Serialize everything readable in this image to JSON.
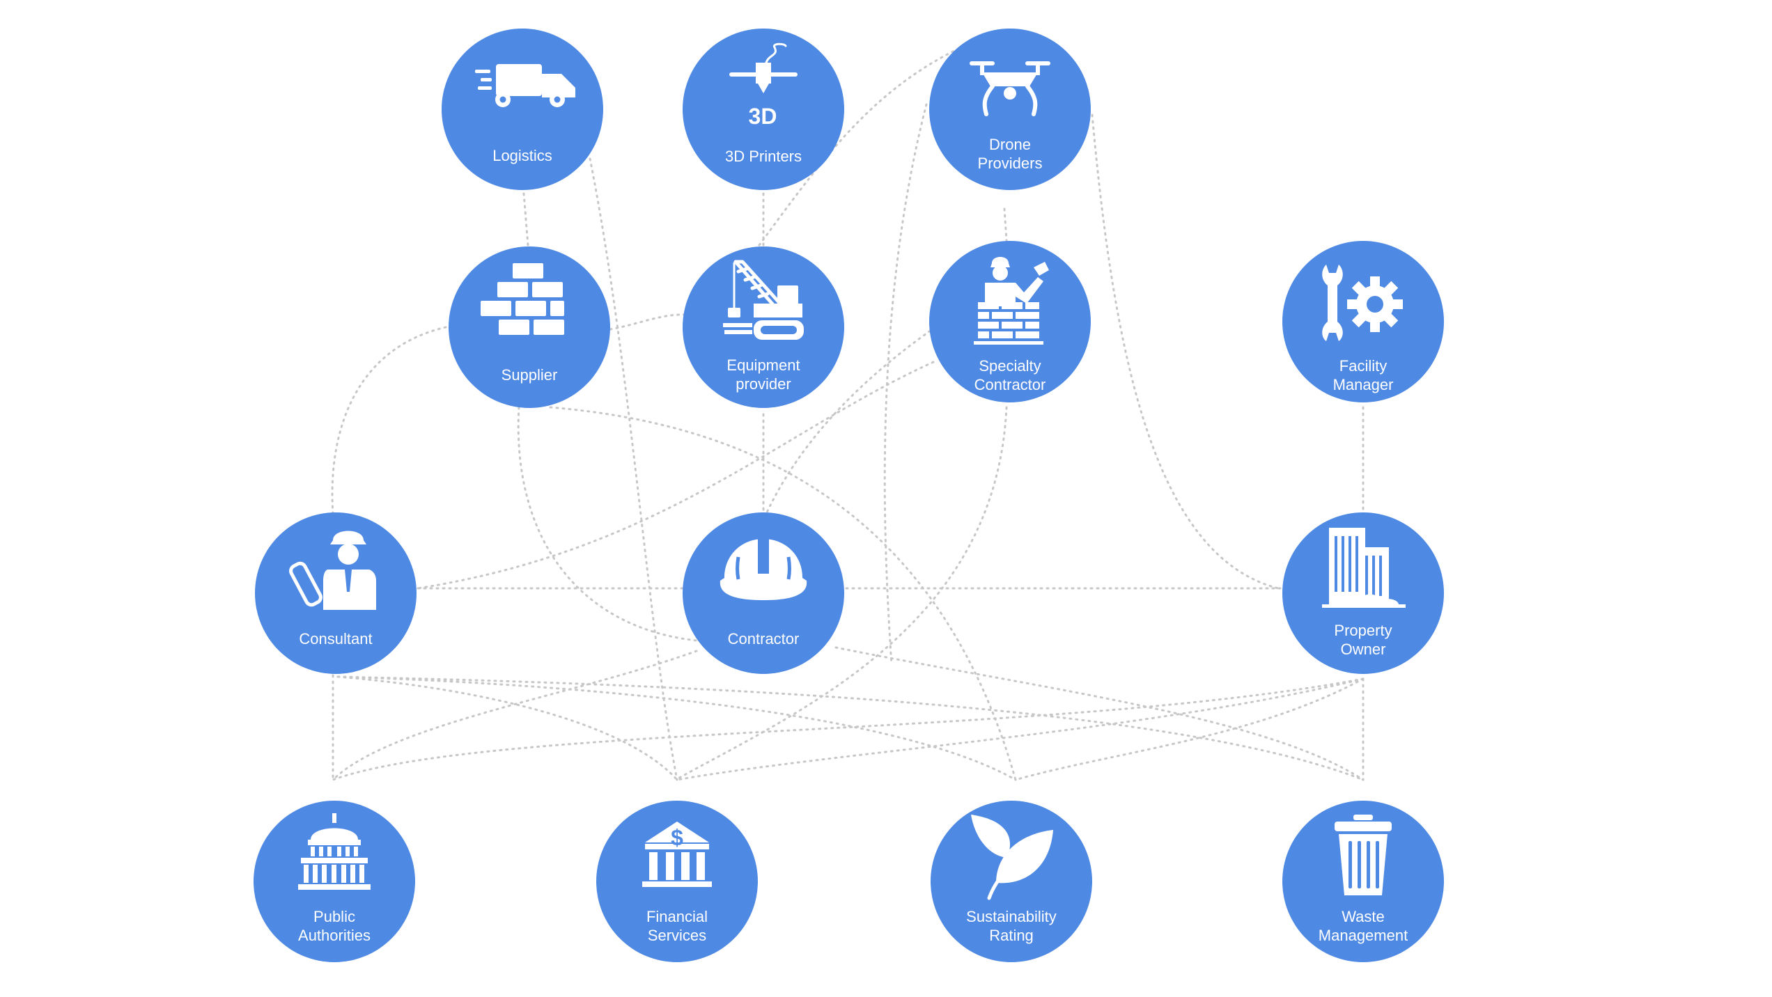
{
  "theme": {
    "node_color": "#4e89e3",
    "connector_color": "#c7c7c7",
    "icon_color": "#ffffff"
  },
  "nodes": {
    "logistics": {
      "lines": [
        "Logistics"
      ],
      "icon": "truck-icon"
    },
    "printers": {
      "lines": [
        "3D Printers"
      ],
      "icon": "3d-printer-icon"
    },
    "drone": {
      "lines": [
        "Drone",
        "Providers"
      ],
      "icon": "drone-icon"
    },
    "supplier": {
      "lines": [
        "Supplier"
      ],
      "icon": "bricks-icon"
    },
    "equipment": {
      "lines": [
        "Equipment",
        "provider"
      ],
      "icon": "crane-icon"
    },
    "specialty": {
      "lines": [
        "Specialty",
        "Contractor"
      ],
      "icon": "bricklayer-icon"
    },
    "facility": {
      "lines": [
        "Facility",
        "Manager"
      ],
      "icon": "wrench-gear-icon"
    },
    "consultant": {
      "lines": [
        "Consultant"
      ],
      "icon": "engineer-blueprint-icon"
    },
    "contractor": {
      "lines": [
        "Contractor"
      ],
      "icon": "hard-hat-icon"
    },
    "owner": {
      "lines": [
        "Property",
        "Owner"
      ],
      "icon": "buildings-icon"
    },
    "public": {
      "lines": [
        "Public",
        "Authorities"
      ],
      "icon": "capitol-icon"
    },
    "financial": {
      "lines": [
        "Financial",
        "Services"
      ],
      "icon": "bank-icon"
    },
    "sustainability": {
      "lines": [
        "Sustainability",
        "Rating"
      ],
      "icon": "leaf-icon"
    },
    "waste": {
      "lines": [
        "Waste",
        "Management"
      ],
      "icon": "trash-bin-icon"
    }
  }
}
